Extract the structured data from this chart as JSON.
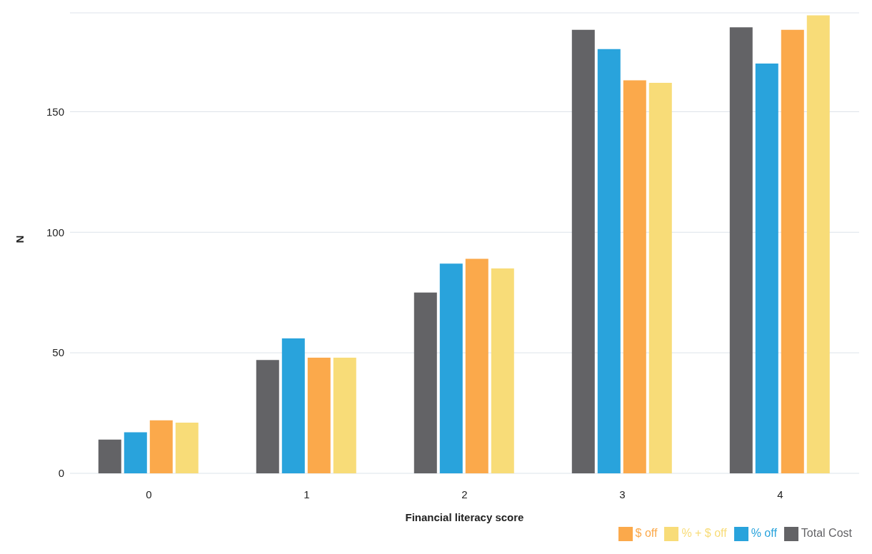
{
  "chart_data": {
    "type": "bar",
    "xlabel": "Financial literacy score",
    "ylabel": "N",
    "categories": [
      "0",
      "1",
      "2",
      "3",
      "4"
    ],
    "series": [
      {
        "name": "Total Cost",
        "color": "#636366",
        "values": [
          14,
          47,
          75,
          184,
          185
        ]
      },
      {
        "name": "% off",
        "color": "#29a3dc",
        "values": [
          17,
          56,
          87,
          176,
          170
        ]
      },
      {
        "name": "$ off",
        "color": "#fba94b",
        "values": [
          22,
          48,
          89,
          163,
          184
        ]
      },
      {
        "name": "% + $ off",
        "color": "#f8dc78",
        "values": [
          21,
          48,
          85,
          162,
          190
        ]
      }
    ],
    "ylim": [
      0,
      191
    ],
    "yticks": [
      0,
      50,
      100,
      150
    ],
    "grid": "y",
    "legend": "bottom right"
  }
}
